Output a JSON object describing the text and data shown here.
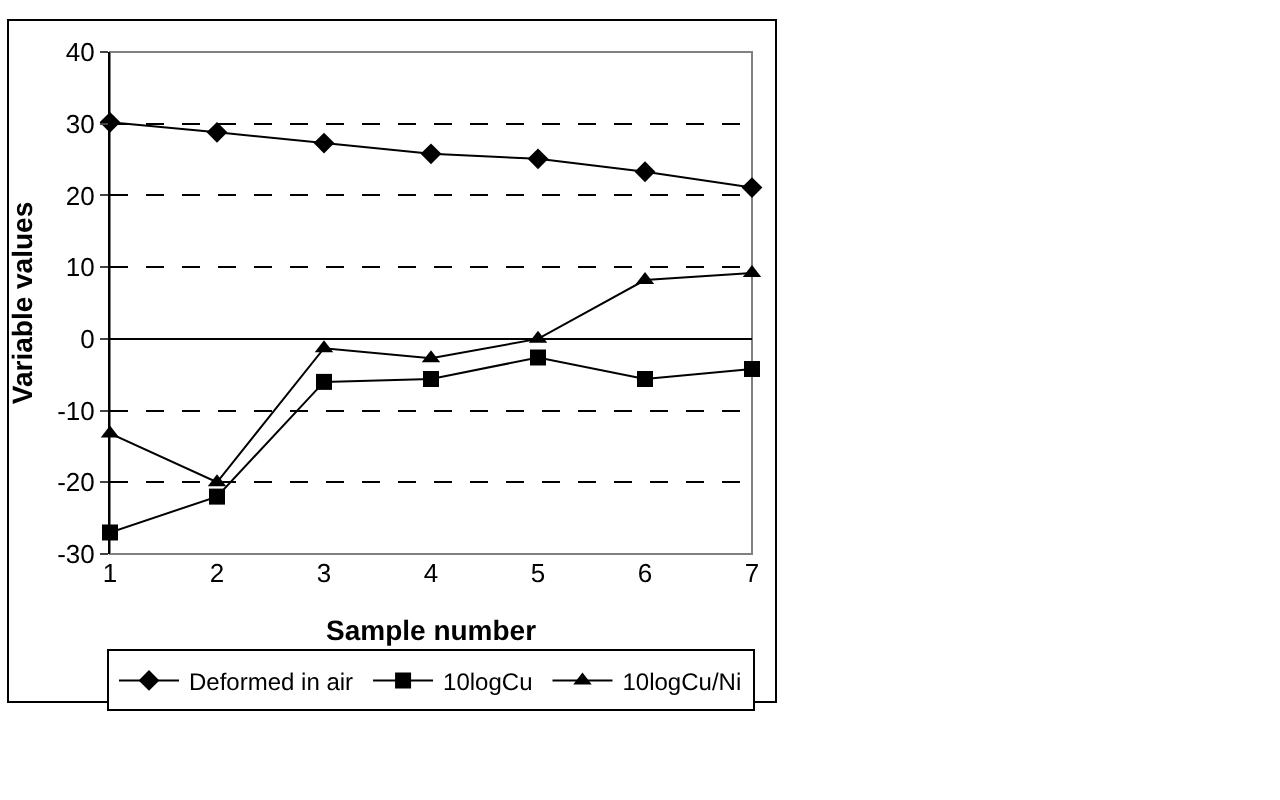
{
  "chart_data": {
    "type": "line",
    "xlabel": "Sample number",
    "ylabel": "Variable values",
    "categories": [
      "1",
      "2",
      "3",
      "4",
      "5",
      "6",
      "7"
    ],
    "series": [
      {
        "name": "Deformed in air",
        "color": "#000000",
        "marker": "diamond",
        "values": [
          30.2,
          28.8,
          27.3,
          25.8,
          25.1,
          23.3,
          21.1
        ]
      },
      {
        "name": "10logCu",
        "color": "#000000",
        "marker": "square",
        "values": [
          -27,
          -22,
          -6,
          -5.6,
          -2.6,
          -5.6,
          -4.2
        ]
      },
      {
        "name": "10logCu/Ni",
        "color": "#000000",
        "marker": "triangle",
        "values": [
          -13.2,
          -20,
          -1.3,
          -2.7,
          0,
          8.2,
          9.2
        ]
      }
    ],
    "ylim": [
      -30,
      40
    ],
    "yticks": [
      -30,
      -20,
      -10,
      0,
      10,
      20,
      30,
      40
    ],
    "grid": "y",
    "legend": "bottom",
    "line_style": "solid"
  }
}
